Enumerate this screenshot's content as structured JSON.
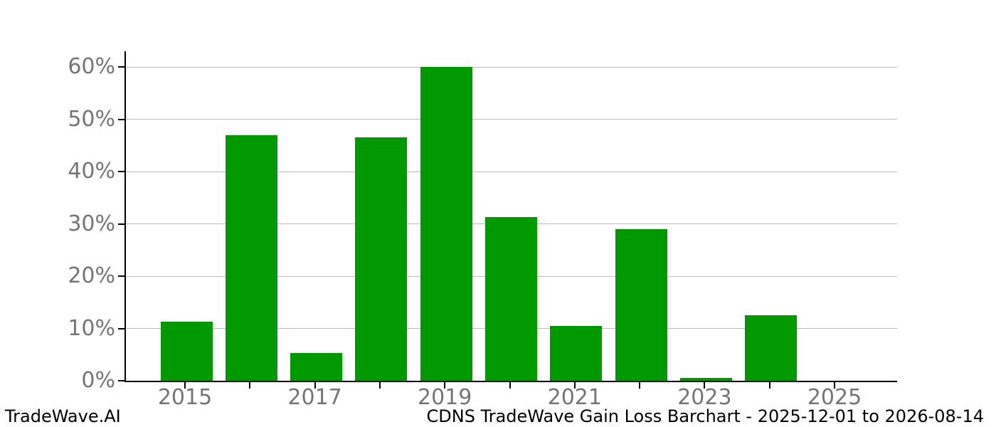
{
  "chart_data": {
    "type": "bar",
    "title": "CDNS TradeWave Gain Loss Barchart - 2025-12-01 to 2026-08-14",
    "xlabel": "",
    "ylabel": "",
    "x": [
      2015,
      2016,
      2017,
      2018,
      2019,
      2020,
      2021,
      2022,
      2023,
      2024,
      2025
    ],
    "values": [
      11.3,
      47.0,
      5.3,
      46.6,
      60.0,
      31.3,
      10.5,
      29.0,
      0.6,
      12.5,
      0.0
    ],
    "bar_color": "#009a00",
    "ylim": [
      0,
      63
    ],
    "yticks": [
      0,
      10,
      20,
      30,
      40,
      50,
      60
    ],
    "ytick_labels": [
      "0%",
      "10%",
      "20%",
      "30%",
      "40%",
      "50%",
      "60%"
    ],
    "xticks_labeled": [
      2015,
      2017,
      2019,
      2021,
      2023,
      2025
    ],
    "grid": true,
    "legend_position": "none"
  },
  "footer": {
    "brand": "TradeWave.AI",
    "title": "CDNS TradeWave Gain Loss Barchart - 2025-12-01 to 2026-08-14"
  },
  "colors": {
    "bar": "#009a00",
    "grid": "#bdbdbd",
    "tick_text": "#757575",
    "axis": "#000000",
    "footer_text": "#000000"
  }
}
